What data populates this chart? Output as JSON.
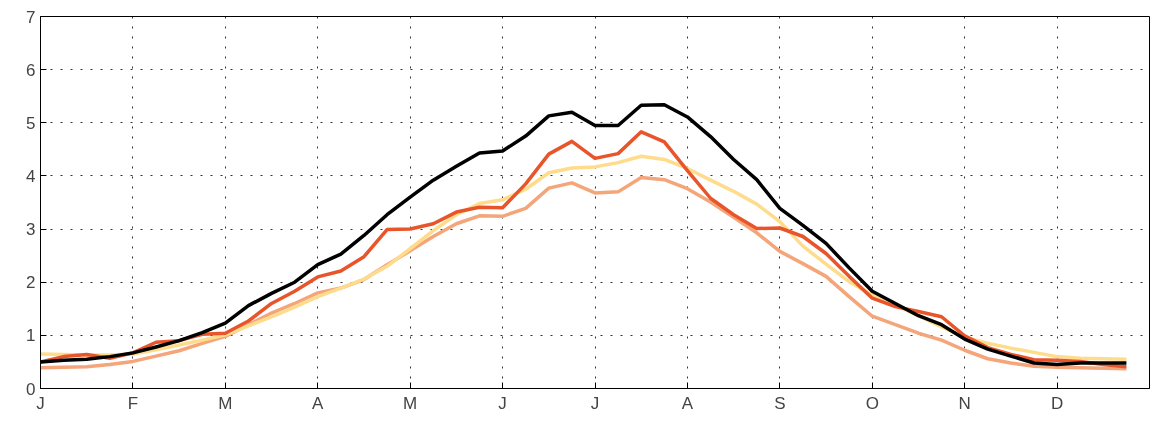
{
  "chart_data": {
    "type": "line",
    "ylim": [
      0,
      7
    ],
    "yticks": [
      0,
      1,
      2,
      3,
      4,
      5,
      6,
      7
    ],
    "grid": true,
    "line_style": "solid",
    "categories": [
      "J",
      null,
      null,
      null,
      "F",
      null,
      null,
      null,
      "M",
      null,
      null,
      null,
      "A",
      null,
      null,
      null,
      "M",
      null,
      null,
      null,
      "J",
      null,
      null,
      null,
      "J",
      null,
      null,
      null,
      "A",
      null,
      null,
      null,
      "S",
      null,
      null,
      null,
      "O",
      null,
      null,
      null,
      "N",
      null,
      null,
      null,
      "D",
      null,
      null,
      null
    ],
    "series": [
      {
        "color": "#f4a57a",
        "values": [
          0.39,
          0.4,
          0.41,
          0.45,
          0.51,
          0.61,
          0.71,
          0.85,
          0.98,
          1.2,
          1.42,
          1.6,
          1.8,
          1.89,
          2.05,
          2.33,
          2.59,
          2.86,
          3.1,
          3.25,
          3.24,
          3.39,
          3.77,
          3.87,
          3.68,
          3.7,
          3.97,
          3.93,
          3.76,
          3.51,
          3.22,
          2.93,
          2.58,
          2.35,
          2.11,
          1.73,
          1.36,
          1.2,
          1.04,
          0.91,
          0.72,
          0.56,
          0.48,
          0.42,
          0.4,
          0.39,
          0.38,
          0.37
        ]
      },
      {
        "color": "#fedc8c",
        "values": [
          0.65,
          0.64,
          0.63,
          0.63,
          0.65,
          0.73,
          0.82,
          0.91,
          1.01,
          1.18,
          1.35,
          1.53,
          1.73,
          1.89,
          2.06,
          2.3,
          2.63,
          2.97,
          3.27,
          3.48,
          3.55,
          3.75,
          4.06,
          4.15,
          4.17,
          4.25,
          4.37,
          4.31,
          4.14,
          3.92,
          3.71,
          3.47,
          3.14,
          2.68,
          2.34,
          2.01,
          1.76,
          1.57,
          1.37,
          1.16,
          0.97,
          0.85,
          0.76,
          0.68,
          0.6,
          0.57,
          0.56,
          0.55
        ]
      },
      {
        "color": "#e8552b",
        "values": [
          0.5,
          0.6,
          0.64,
          0.57,
          0.67,
          0.87,
          0.9,
          1.02,
          1.04,
          1.27,
          1.6,
          1.83,
          2.1,
          2.21,
          2.48,
          2.99,
          3.0,
          3.1,
          3.32,
          3.41,
          3.4,
          3.85,
          4.41,
          4.65,
          4.33,
          4.42,
          4.83,
          4.64,
          4.1,
          3.58,
          3.27,
          3.01,
          3.02,
          2.86,
          2.54,
          2.11,
          1.7,
          1.54,
          1.45,
          1.35,
          0.99,
          0.77,
          0.64,
          0.54,
          0.53,
          0.51,
          0.45,
          0.41
        ]
      },
      {
        "color": "#000000",
        "values": [
          0.5,
          0.53,
          0.55,
          0.6,
          0.67,
          0.78,
          0.9,
          1.05,
          1.23,
          1.56,
          1.79,
          2.0,
          2.33,
          2.53,
          2.88,
          3.27,
          3.6,
          3.92,
          4.18,
          4.43,
          4.47,
          4.75,
          5.13,
          5.2,
          4.95,
          4.95,
          5.33,
          5.34,
          5.11,
          4.74,
          4.31,
          3.93,
          3.39,
          3.07,
          2.73,
          2.27,
          1.83,
          1.6,
          1.37,
          1.2,
          0.93,
          0.74,
          0.61,
          0.48,
          0.45,
          0.48,
          0.48,
          0.48
        ]
      }
    ]
  }
}
